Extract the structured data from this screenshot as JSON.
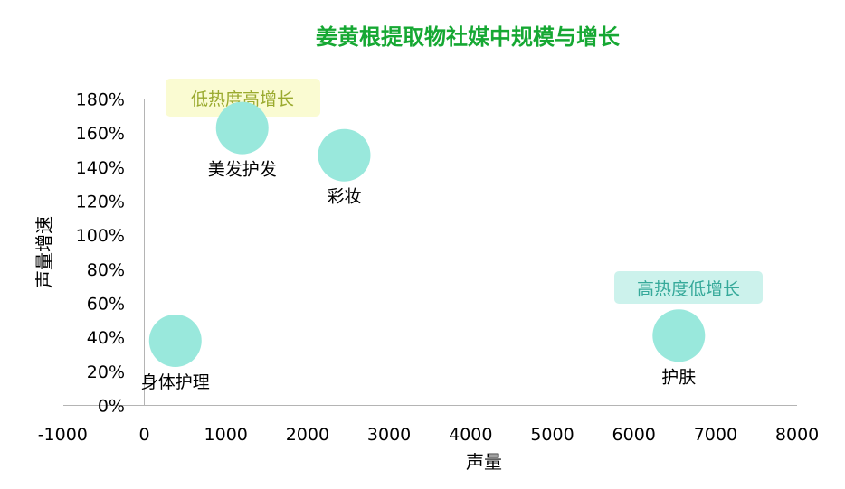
{
  "colors": {
    "title": "#16a833",
    "bubble": "#99e8dc",
    "axis": "#b4b4b4",
    "annotation_top_bg": "#fafbd2",
    "annotation_top_text": "#9aaa2e",
    "annotation_right_bg": "#ccf2ec",
    "annotation_right_text": "#36a99a"
  },
  "chart_data": {
    "type": "scatter",
    "title": "姜黄根提取物社媒中规模与增长",
    "xlabel": "声量",
    "ylabel": "声量增速",
    "xlim": [
      -1000,
      8000
    ],
    "ylim": [
      0,
      1.8
    ],
    "x_ticks": [
      "-1000",
      "0",
      "1000",
      "2000",
      "3000",
      "4000",
      "5000",
      "6000",
      "7000",
      "8000"
    ],
    "y_ticks": [
      "0%",
      "20%",
      "40%",
      "60%",
      "80%",
      "100%",
      "120%",
      "140%",
      "160%",
      "180%"
    ],
    "grid": false,
    "points": [
      {
        "label": "美发护发",
        "x": 1200,
        "y": 1.63
      },
      {
        "label": "彩妆",
        "x": 2450,
        "y": 1.47
      },
      {
        "label": "身体护理",
        "x": 380,
        "y": 0.38
      },
      {
        "label": "护肤",
        "x": 6550,
        "y": 0.41
      }
    ],
    "annotations": [
      {
        "text": "低热度高增长",
        "position": "top-left"
      },
      {
        "text": "高热度低增长",
        "position": "right"
      }
    ]
  }
}
